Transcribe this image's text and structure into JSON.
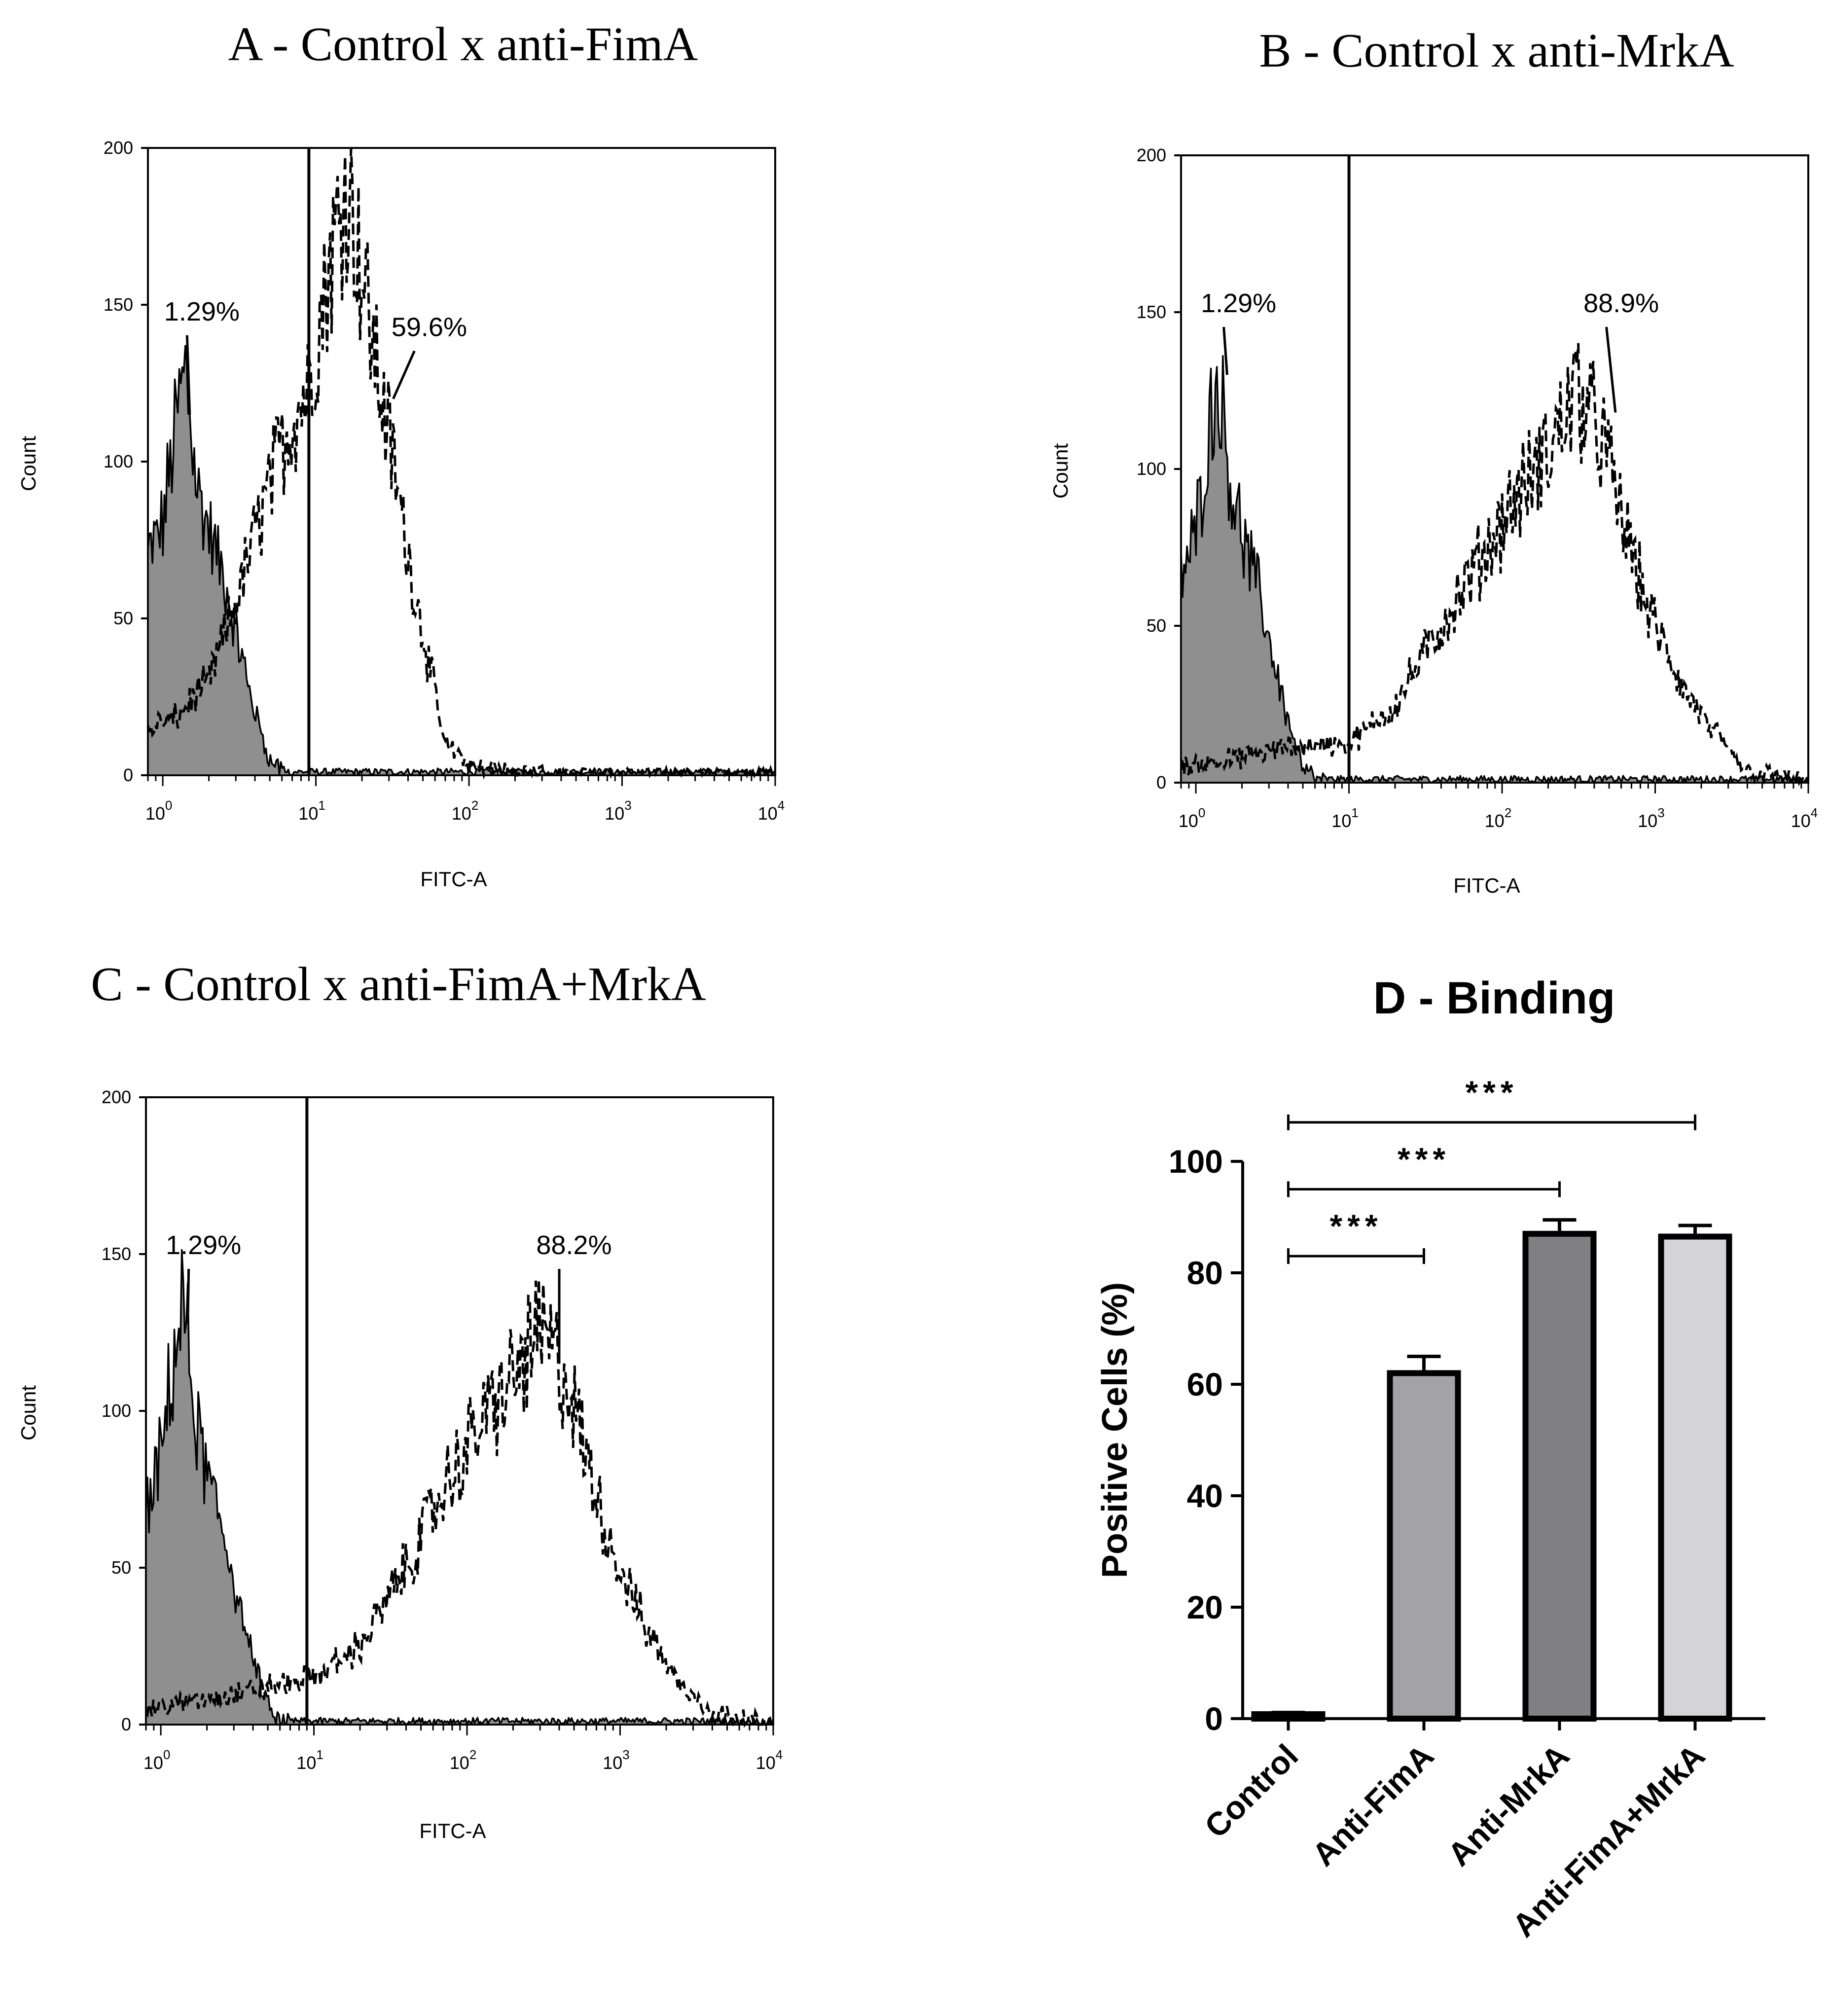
{
  "chart_data": [
    {
      "id": "A",
      "type": "histogram",
      "title": "A - Control x anti-FimA",
      "xlabel": "FITC-A",
      "ylabel": "Count",
      "x_scale": "log",
      "xlim": [
        0.8,
        10000
      ],
      "ylim": [
        0,
        200
      ],
      "x_ticks": [
        {
          "b": "10",
          "e": "0",
          "v": 1
        },
        {
          "b": "10",
          "e": "1",
          "v": 10
        },
        {
          "b": "10",
          "e": "2",
          "v": 100
        },
        {
          "b": "10",
          "e": "3",
          "v": 1000
        },
        {
          "b": "10",
          "e": "4",
          "v": 10000
        }
      ],
      "y_ticks": [
        "0",
        "50",
        "100",
        "150",
        "200"
      ],
      "gate_x": 9,
      "series": [
        {
          "name": "Control",
          "style": "filled-gray",
          "points": [
            [
              0.8,
              70
            ],
            [
              1.0,
              80
            ],
            [
              1.2,
              110
            ],
            [
              1.4,
              130
            ],
            [
              1.7,
              90
            ],
            [
              2.1,
              75
            ],
            [
              2.6,
              60
            ],
            [
              3.2,
              40
            ],
            [
              4.0,
              20
            ],
            [
              5.0,
              5
            ],
            [
              6.0,
              1
            ],
            [
              8,
              0
            ]
          ]
        },
        {
          "name": "anti-FimA",
          "style": "dashed",
          "points": [
            [
              0.8,
              15
            ],
            [
              1.2,
              18
            ],
            [
              2.0,
              30
            ],
            [
              3.0,
              55
            ],
            [
              4.5,
              85
            ],
            [
              6.5,
              110
            ],
            [
              9,
              125
            ],
            [
              12,
              160
            ],
            [
              16,
              190
            ],
            [
              20,
              160
            ],
            [
              25,
              130
            ],
            [
              32,
              100
            ],
            [
              40,
              70
            ],
            [
              55,
              35
            ],
            [
              70,
              10
            ],
            [
              100,
              3
            ],
            [
              200,
              1
            ],
            [
              500,
              0
            ],
            [
              10000,
              0
            ]
          ]
        }
      ],
      "annotations": [
        {
          "text": "1.29%",
          "x": 1.8,
          "y": 145,
          "line_to": [
            1.5,
            115
          ]
        },
        {
          "text": "59.6%",
          "x": 55,
          "y": 140,
          "line_to": [
            32,
            120
          ]
        }
      ]
    },
    {
      "id": "B",
      "type": "histogram",
      "title": "B - Control x anti-MrkA",
      "xlabel": "FITC-A",
      "ylabel": "Count",
      "x_scale": "log",
      "xlim": [
        0.8,
        10000
      ],
      "ylim": [
        0,
        200
      ],
      "x_ticks": [
        {
          "b": "10",
          "e": "0",
          "v": 1
        },
        {
          "b": "10",
          "e": "1",
          "v": 10
        },
        {
          "b": "10",
          "e": "2",
          "v": 100
        },
        {
          "b": "10",
          "e": "3",
          "v": 1000
        },
        {
          "b": "10",
          "e": "4",
          "v": 10000
        }
      ],
      "y_ticks": [
        "0",
        "50",
        "100",
        "150",
        "200"
      ],
      "gate_x": 10,
      "series": [
        {
          "name": "Control",
          "style": "filled-gray",
          "points": [
            [
              0.8,
              65
            ],
            [
              1.0,
              80
            ],
            [
              1.2,
              110
            ],
            [
              1.4,
              130
            ],
            [
              1.7,
              95
            ],
            [
              2.1,
              75
            ],
            [
              2.6,
              60
            ],
            [
              3.2,
              40
            ],
            [
              4.0,
              20
            ],
            [
              5.0,
              6
            ],
            [
              6.0,
              1
            ],
            [
              8,
              0
            ]
          ]
        },
        {
          "name": "anti-MrkA",
          "style": "dashed",
          "points": [
            [
              0.8,
              5
            ],
            [
              2,
              8
            ],
            [
              5,
              12
            ],
            [
              10,
              12
            ],
            [
              20,
              25
            ],
            [
              40,
              50
            ],
            [
              70,
              70
            ],
            [
              120,
              90
            ],
            [
              200,
              105
            ],
            [
              300,
              125
            ],
            [
              450,
              110
            ],
            [
              600,
              85
            ],
            [
              900,
              55
            ],
            [
              1500,
              30
            ],
            [
              2500,
              15
            ],
            [
              4000,
              4
            ],
            [
              10000,
              0
            ]
          ]
        }
      ],
      "annotations": [
        {
          "text": "1.29%",
          "x": 1.9,
          "y": 150,
          "line_to": [
            1.6,
            130
          ]
        },
        {
          "text": "88.9%",
          "x": 600,
          "y": 150,
          "line_to": [
            550,
            118
          ]
        }
      ]
    },
    {
      "id": "C",
      "type": "histogram",
      "title": "C - Control x anti-FimA+MrkA",
      "xlabel": "FITC-A",
      "ylabel": "Count",
      "x_scale": "log",
      "xlim": [
        0.8,
        10000
      ],
      "ylim": [
        0,
        200
      ],
      "x_ticks": [
        {
          "b": "10",
          "e": "0",
          "v": 1
        },
        {
          "b": "10",
          "e": "1",
          "v": 10
        },
        {
          "b": "10",
          "e": "2",
          "v": 100
        },
        {
          "b": "10",
          "e": "3",
          "v": 1000
        },
        {
          "b": "10",
          "e": "4",
          "v": 10000
        }
      ],
      "y_ticks": [
        "0",
        "50",
        "100",
        "150",
        "200"
      ],
      "gate_x": 9,
      "series": [
        {
          "name": "Control",
          "style": "filled-gray",
          "points": [
            [
              0.8,
              65
            ],
            [
              1.0,
              85
            ],
            [
              1.2,
              115
            ],
            [
              1.4,
              135
            ],
            [
              1.7,
              95
            ],
            [
              2.1,
              75
            ],
            [
              2.6,
              60
            ],
            [
              3.2,
              40
            ],
            [
              4.0,
              20
            ],
            [
              5.0,
              6
            ],
            [
              6.0,
              1
            ],
            [
              8,
              0
            ]
          ]
        },
        {
          "name": "anti-FimA+MrkA",
          "style": "dashed",
          "points": [
            [
              0.8,
              5
            ],
            [
              2,
              8
            ],
            [
              5,
              12
            ],
            [
              10,
              15
            ],
            [
              20,
              25
            ],
            [
              40,
              50
            ],
            [
              70,
              75
            ],
            [
              120,
              95
            ],
            [
              200,
              110
            ],
            [
              300,
              125
            ],
            [
              450,
              110
            ],
            [
              600,
              85
            ],
            [
              900,
              55
            ],
            [
              1500,
              30
            ],
            [
              2500,
              12
            ],
            [
              4000,
              4
            ],
            [
              10000,
              0
            ]
          ]
        }
      ],
      "annotations": [
        {
          "text": "1.29%",
          "x": 1.9,
          "y": 150,
          "line_to": [
            1.5,
            128
          ]
        },
        {
          "text": "88.2%",
          "x": 500,
          "y": 150,
          "line_to": [
            400,
            115
          ]
        }
      ]
    },
    {
      "id": "D",
      "type": "bar",
      "title": "D - Binding",
      "ylabel": "Positive Cells (%)",
      "ylim": [
        0,
        100
      ],
      "y_ticks": [
        "0",
        "20",
        "40",
        "60",
        "80",
        "100"
      ],
      "categories": [
        "Control",
        "Anti-FimA",
        "Anti-MrkA",
        "Anti-FimA+MrkA"
      ],
      "values": [
        0.8,
        62,
        87,
        86.5
      ],
      "errors": [
        0.3,
        3,
        2.5,
        2
      ],
      "bar_colors": [
        "#9a9aa0",
        "#a2a2a7",
        "#808084",
        "#d4d4d8"
      ],
      "significance": [
        {
          "from": 0,
          "to": 1,
          "y": 83,
          "label": "***"
        },
        {
          "from": 0,
          "to": 2,
          "y": 95,
          "label": "***"
        },
        {
          "from": 0,
          "to": 3,
          "y": 107,
          "label": "***"
        }
      ]
    }
  ]
}
